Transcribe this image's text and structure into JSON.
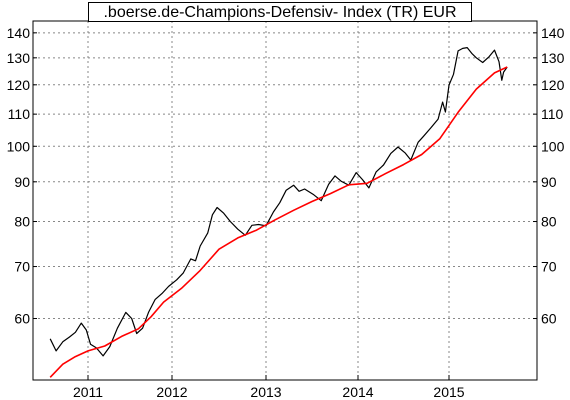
{
  "chart_data": {
    "type": "line",
    "title": ".boerse.de-Champions-Defensiv- Index (TR) EUR",
    "y_scale": "log",
    "ylim": [
      50,
      145
    ],
    "y_ticks": [
      60,
      70,
      80,
      90,
      100,
      110,
      120,
      130,
      140
    ],
    "x_ticks": [
      "2011",
      "2012",
      "2013",
      "2014",
      "2015"
    ],
    "xlim": [
      2010.55,
      2015.95
    ],
    "grid": true,
    "legend": "none",
    "series": [
      {
        "color": "#000000",
        "points": [
          [
            2010.55,
            56.5
          ],
          [
            2010.62,
            54.5
          ],
          [
            2010.7,
            56.0
          ],
          [
            2010.78,
            56.8
          ],
          [
            2010.85,
            57.6
          ],
          [
            2010.92,
            59.2
          ],
          [
            2010.98,
            58.0
          ],
          [
            2011.03,
            55.6
          ],
          [
            2011.1,
            55.0
          ],
          [
            2011.18,
            53.7
          ],
          [
            2011.26,
            55.2
          ],
          [
            2011.35,
            58.3
          ],
          [
            2011.45,
            61.1
          ],
          [
            2011.52,
            60.0
          ],
          [
            2011.58,
            57.4
          ],
          [
            2011.65,
            58.3
          ],
          [
            2011.72,
            61.1
          ],
          [
            2011.8,
            63.5
          ],
          [
            2011.88,
            64.6
          ],
          [
            2011.96,
            66.0
          ],
          [
            2012.05,
            67.3
          ],
          [
            2012.12,
            68.7
          ],
          [
            2012.2,
            71.6
          ],
          [
            2012.25,
            71.2
          ],
          [
            2012.3,
            74.4
          ],
          [
            2012.38,
            77.3
          ],
          [
            2012.43,
            81.6
          ],
          [
            2012.48,
            83.4
          ],
          [
            2012.55,
            82.0
          ],
          [
            2012.62,
            80.0
          ],
          [
            2012.7,
            78.2
          ],
          [
            2012.78,
            76.8
          ],
          [
            2012.85,
            79.1
          ],
          [
            2012.92,
            79.3
          ],
          [
            2013.0,
            79.0
          ],
          [
            2013.08,
            82.3
          ],
          [
            2013.15,
            84.6
          ],
          [
            2013.22,
            87.8
          ],
          [
            2013.3,
            89.1
          ],
          [
            2013.36,
            87.5
          ],
          [
            2013.42,
            88.1
          ],
          [
            2013.52,
            86.6
          ],
          [
            2013.6,
            85.1
          ],
          [
            2013.68,
            89.3
          ],
          [
            2013.75,
            91.6
          ],
          [
            2013.82,
            90.1
          ],
          [
            2013.9,
            89.1
          ],
          [
            2013.98,
            92.5
          ],
          [
            2014.05,
            90.6
          ],
          [
            2014.12,
            88.4
          ],
          [
            2014.2,
            92.7
          ],
          [
            2014.28,
            94.6
          ],
          [
            2014.36,
            97.9
          ],
          [
            2014.44,
            99.8
          ],
          [
            2014.52,
            98.0
          ],
          [
            2014.58,
            96.0
          ],
          [
            2014.66,
            101.2
          ],
          [
            2014.72,
            103.0
          ],
          [
            2014.8,
            105.6
          ],
          [
            2014.88,
            108.4
          ],
          [
            2014.93,
            114.0
          ],
          [
            2014.96,
            110.7
          ],
          [
            2015.0,
            119.9
          ],
          [
            2015.05,
            123.8
          ],
          [
            2015.1,
            132.7
          ],
          [
            2015.15,
            133.7
          ],
          [
            2015.2,
            134.0
          ],
          [
            2015.25,
            131.7
          ],
          [
            2015.3,
            130.0
          ],
          [
            2015.37,
            128.2
          ],
          [
            2015.44,
            130.4
          ],
          [
            2015.5,
            133.0
          ],
          [
            2015.55,
            128.5
          ],
          [
            2015.58,
            121.6
          ],
          [
            2015.6,
            124.6
          ],
          [
            2015.64,
            126.5
          ]
        ]
      },
      {
        "color": "#ff0000",
        "points": [
          [
            2010.55,
            50.4
          ],
          [
            2010.7,
            52.4
          ],
          [
            2010.85,
            53.6
          ],
          [
            2011.0,
            54.5
          ],
          [
            2011.2,
            55.3
          ],
          [
            2011.4,
            56.9
          ],
          [
            2011.6,
            58.2
          ],
          [
            2011.75,
            60.3
          ],
          [
            2011.9,
            63.0
          ],
          [
            2012.1,
            65.6
          ],
          [
            2012.3,
            69.2
          ],
          [
            2012.5,
            73.7
          ],
          [
            2012.7,
            76.2
          ],
          [
            2012.9,
            78.0
          ],
          [
            2013.1,
            80.4
          ],
          [
            2013.3,
            82.7
          ],
          [
            2013.5,
            84.9
          ],
          [
            2013.7,
            86.9
          ],
          [
            2013.9,
            89.2
          ],
          [
            2014.1,
            89.6
          ],
          [
            2014.3,
            92.2
          ],
          [
            2014.5,
            94.7
          ],
          [
            2014.7,
            97.6
          ],
          [
            2014.9,
            102.3
          ],
          [
            2015.1,
            110.6
          ],
          [
            2015.3,
            118.5
          ],
          [
            2015.5,
            124.3
          ],
          [
            2015.64,
            126.5
          ]
        ]
      }
    ]
  }
}
